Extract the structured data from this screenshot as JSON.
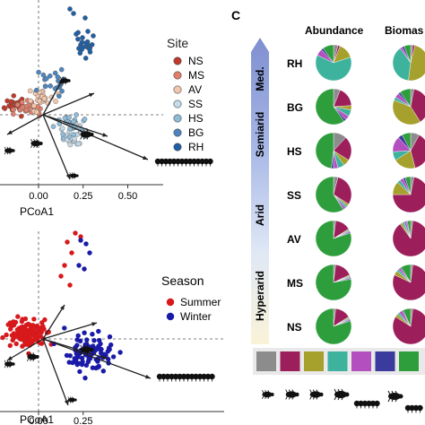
{
  "panel_c_label": "C",
  "chart_data": [
    {
      "type": "scatter",
      "panel": "top-left",
      "xlabel": "PCoA1",
      "x_ticks": [
        "25",
        "0.00",
        "0.25",
        "0.50"
      ],
      "x_tick_values": [
        -0.25,
        0.0,
        0.25,
        0.5
      ],
      "legend_title": "Site",
      "legend_position": "right",
      "series": [
        {
          "name": "NS",
          "color": "#c0392b"
        },
        {
          "name": "MS",
          "color": "#e0806a"
        },
        {
          "name": "AV",
          "color": "#f3c7ad"
        },
        {
          "name": "SS",
          "color": "#c6dbe9"
        },
        {
          "name": "HS",
          "color": "#8fbcd9"
        },
        {
          "name": "BG",
          "color": "#4d86bf"
        },
        {
          "name": "RH",
          "color": "#1f5fa6"
        }
      ]
    },
    {
      "type": "scatter",
      "panel": "bottom-left",
      "xlabel": "PCoA1",
      "x_ticks": [
        "0.00",
        "0.25"
      ],
      "x_tick_values": [
        0.0,
        0.25
      ],
      "legend_title": "Season",
      "legend_position": "right",
      "series": [
        {
          "name": "Summer",
          "color": "#d7191c"
        },
        {
          "name": "Winter",
          "color": "#1a1aa8"
        }
      ]
    },
    {
      "type": "pie",
      "panel": "C",
      "column_headers": [
        "Abundance",
        "Biomas"
      ],
      "climate_zones": [
        "Med.",
        "Semiarid",
        "Arid",
        "Hyperarid"
      ],
      "sites": [
        "RH",
        "BG",
        "HS",
        "SS",
        "AV",
        "MS",
        "NS"
      ],
      "category_colors": [
        "#8c8c8c",
        "#9c1f5c",
        "#a6a02c",
        "#3db39e",
        "#b34fbf",
        "#3b3b9e",
        "#2e9e3c"
      ],
      "abundance": [
        [
          4,
          2,
          14,
          62,
          6,
          2,
          10
        ],
        [
          6,
          18,
          4,
          6,
          4,
          2,
          60
        ],
        [
          12,
          22,
          6,
          6,
          4,
          2,
          48
        ],
        [
          4,
          30,
          2,
          2,
          2,
          1,
          59
        ],
        [
          2,
          14,
          1,
          1,
          1,
          1,
          80
        ],
        [
          2,
          16,
          1,
          1,
          1,
          1,
          78
        ],
        [
          2,
          14,
          1,
          1,
          1,
          1,
          80
        ]
      ],
      "biomass": [
        [
          2,
          2,
          48,
          38,
          2,
          2,
          6
        ],
        [
          3,
          38,
          40,
          3,
          4,
          2,
          10
        ],
        [
          8,
          38,
          20,
          8,
          14,
          4,
          8
        ],
        [
          3,
          72,
          12,
          3,
          3,
          2,
          5
        ],
        [
          2,
          88,
          2,
          2,
          2,
          1,
          3
        ],
        [
          2,
          80,
          4,
          2,
          2,
          1,
          9
        ],
        [
          2,
          82,
          3,
          2,
          3,
          1,
          7
        ]
      ]
    }
  ]
}
